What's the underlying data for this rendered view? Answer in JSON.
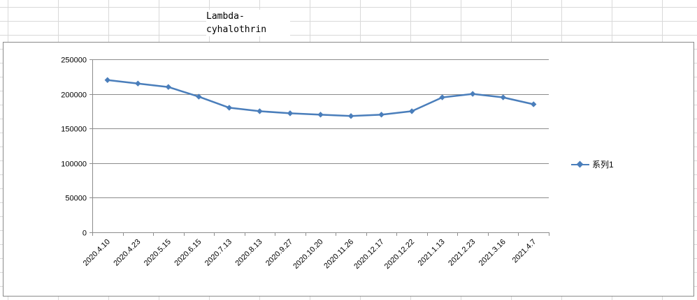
{
  "sheet": {
    "cell_text": "Lambda-\ncyhalothrin"
  },
  "chart_data": {
    "type": "line",
    "title": "",
    "xlabel": "",
    "ylabel": "",
    "categories": [
      "2020.4.10",
      "2020.4.23",
      "2020.5.15",
      "2020.6.15",
      "2020.7.13",
      "2020.8.13",
      "2020.9.27",
      "2020.10.20",
      "2020.11.26",
      "2020.12.17",
      "2020.12.22",
      "2021.1.13",
      "2021.2.23",
      "2021.3.16",
      "2021.4.7"
    ],
    "series": [
      {
        "name": "系列1",
        "values": [
          220000,
          215000,
          210000,
          196000,
          180000,
          175000,
          172000,
          170000,
          168000,
          170000,
          175000,
          195000,
          200000,
          195000,
          185000
        ]
      }
    ],
    "ylim": [
      0,
      250000
    ],
    "yticks": [
      "0",
      "50000",
      "100000",
      "150000",
      "200000",
      "250000"
    ],
    "grid": true,
    "legend": "right",
    "colors": {
      "series": "#4a7ebb",
      "gridline": "#8c8c8c",
      "axis": "#8c8c8c"
    }
  }
}
